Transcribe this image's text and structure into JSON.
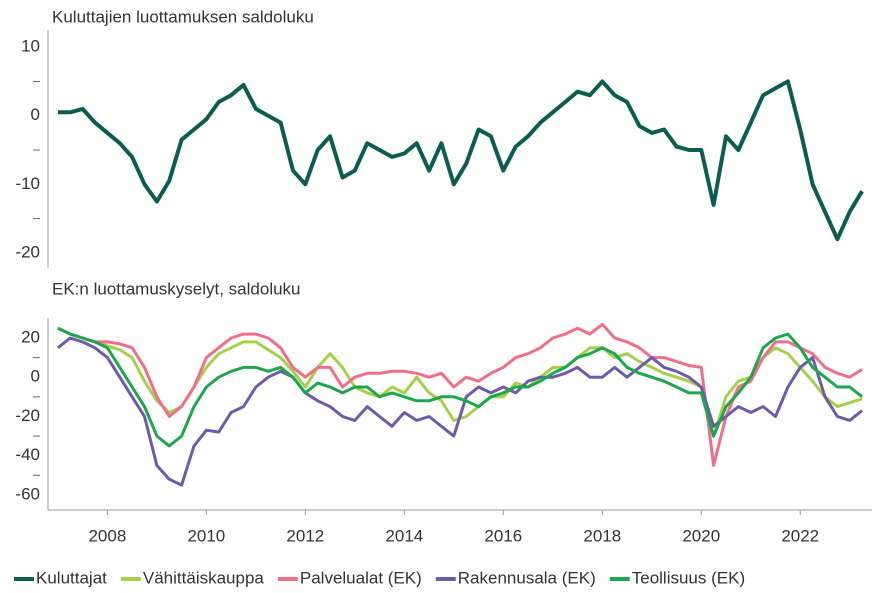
{
  "chart_data": [
    {
      "type": "line",
      "title": "Kuluttajien luottamuksen saldoluku",
      "x": [
        2007,
        2007.25,
        2007.5,
        2007.75,
        2008,
        2008.25,
        2008.5,
        2008.75,
        2009,
        2009.25,
        2009.5,
        2009.75,
        2010,
        2010.25,
        2010.5,
        2010.75,
        2011,
        2011.25,
        2011.5,
        2011.75,
        2012,
        2012.25,
        2012.5,
        2012.75,
        2013,
        2013.25,
        2013.5,
        2013.75,
        2014,
        2014.25,
        2014.5,
        2014.75,
        2015,
        2015.25,
        2015.5,
        2015.75,
        2016,
        2016.25,
        2016.5,
        2016.75,
        2017,
        2017.25,
        2017.5,
        2017.75,
        2018,
        2018.25,
        2018.5,
        2018.75,
        2019,
        2019.25,
        2019.5,
        2019.75,
        2020,
        2020.25,
        2020.5,
        2020.75,
        2021,
        2021.25,
        2021.5,
        2021.75,
        2022,
        2022.25,
        2022.5,
        2022.75,
        2023,
        2023.25
      ],
      "series": [
        {
          "name": "Kuluttajat",
          "color": "#0b5e4f",
          "values": [
            0.5,
            0.5,
            1,
            -1,
            -2.5,
            -4,
            -6,
            -10,
            -12.5,
            -9.5,
            -3.5,
            -2,
            -0.5,
            2,
            3,
            4.5,
            1,
            0,
            -1,
            -8,
            -10,
            -5,
            -3,
            -9,
            -8,
            -4,
            -5,
            -6,
            -5.5,
            -4,
            -8,
            -4,
            -10,
            -7,
            -2,
            -3,
            -8,
            -4.5,
            -3,
            -1,
            0.5,
            2,
            3.5,
            3,
            5,
            3,
            2,
            -1.5,
            -2.5,
            -2,
            -4.5,
            -5,
            -5,
            -13,
            -3,
            -5,
            -1,
            3,
            4,
            5,
            -2,
            -10,
            -14,
            -18,
            -14,
            -11
          ]
        }
      ],
      "xlim": [
        2006.8,
        2023.45
      ],
      "ylim": [
        -22.2,
        12.5
      ],
      "yticks": [
        -20,
        -10,
        0,
        10
      ],
      "yminor": [
        -15,
        -5,
        5
      ]
    },
    {
      "type": "line",
      "title": "EK:n luottamuskyselyt, saldoluku",
      "x": [
        2007,
        2007.25,
        2007.5,
        2007.75,
        2008,
        2008.25,
        2008.5,
        2008.75,
        2009,
        2009.25,
        2009.5,
        2009.75,
        2010,
        2010.25,
        2010.5,
        2010.75,
        2011,
        2011.25,
        2011.5,
        2011.75,
        2012,
        2012.25,
        2012.5,
        2012.75,
        2013,
        2013.25,
        2013.5,
        2013.75,
        2014,
        2014.25,
        2014.5,
        2014.75,
        2015,
        2015.25,
        2015.5,
        2015.75,
        2016,
        2016.25,
        2016.5,
        2016.75,
        2017,
        2017.25,
        2017.5,
        2017.75,
        2018,
        2018.25,
        2018.5,
        2018.75,
        2019,
        2019.25,
        2019.5,
        2019.75,
        2020,
        2020.25,
        2020.5,
        2020.75,
        2021,
        2021.25,
        2021.5,
        2021.75,
        2022,
        2022.25,
        2022.5,
        2022.75,
        2023,
        2023.25
      ],
      "series": [
        {
          "name": "Vähittäiskauppa",
          "color": "#a6d04a",
          "values": [
            25,
            22,
            20,
            18,
            16,
            14,
            10,
            -2,
            -12,
            -18,
            -15,
            -5,
            5,
            12,
            15,
            18,
            18,
            14,
            10,
            3,
            -5,
            5,
            12,
            5,
            -5,
            -8,
            -10,
            -5,
            -8,
            0,
            -8,
            -12,
            -22,
            -20,
            -15,
            -10,
            -10,
            -3,
            -5,
            0,
            5,
            5,
            10,
            15,
            15,
            10,
            12,
            8,
            5,
            2,
            0,
            -2,
            -5,
            -30,
            -10,
            -2,
            0,
            10,
            15,
            12,
            5,
            -2,
            -10,
            -15,
            -13,
            -11
          ]
        },
        {
          "name": "Palvelualat (EK)",
          "color": "#f06e8a",
          "values": [
            25,
            22,
            20,
            18,
            18,
            17,
            15,
            5,
            -10,
            -20,
            -15,
            -5,
            10,
            15,
            20,
            22,
            22,
            20,
            15,
            5,
            0,
            5,
            5,
            -5,
            0,
            2,
            2,
            3,
            3,
            2,
            0,
            2,
            -5,
            0,
            -2,
            2,
            5,
            10,
            12,
            15,
            20,
            22,
            25,
            22,
            27,
            20,
            18,
            15,
            10,
            10,
            8,
            6,
            5,
            -45,
            -20,
            -5,
            -2,
            10,
            18,
            18,
            15,
            12,
            5,
            2,
            0,
            4
          ]
        },
        {
          "name": "Rakennusala (EK)",
          "color": "#6e5aaa",
          "values": [
            15,
            20,
            18,
            15,
            10,
            0,
            -10,
            -20,
            -45,
            -52,
            -55,
            -35,
            -27,
            -28,
            -18,
            -15,
            -5,
            0,
            3,
            0,
            -8,
            -12,
            -15,
            -20,
            -22,
            -15,
            -20,
            -25,
            -18,
            -22,
            -20,
            -25,
            -30,
            -10,
            -5,
            -8,
            -5,
            -8,
            -2,
            0,
            0,
            2,
            5,
            0,
            0,
            5,
            0,
            5,
            10,
            5,
            3,
            0,
            -5,
            -25,
            -20,
            -15,
            -18,
            -15,
            -20,
            -5,
            5,
            10,
            -10,
            -20,
            -22,
            -17
          ]
        },
        {
          "name": "Teollisuus (EK)",
          "color": "#1aa84a",
          "values": [
            25,
            22,
            20,
            18,
            15,
            5,
            -5,
            -15,
            -30,
            -35,
            -30,
            -15,
            -5,
            0,
            3,
            5,
            5,
            3,
            5,
            0,
            -8,
            -3,
            -5,
            -8,
            -5,
            -5,
            -10,
            -8,
            -10,
            -12,
            -12,
            -10,
            -10,
            -12,
            -15,
            -10,
            -8,
            -5,
            -5,
            -2,
            2,
            5,
            10,
            12,
            15,
            12,
            5,
            2,
            0,
            -2,
            -5,
            -8,
            -8,
            -30,
            -15,
            -8,
            0,
            15,
            20,
            22,
            15,
            5,
            0,
            -5,
            -5,
            -10
          ]
        }
      ],
      "xlim": [
        2006.8,
        2023.45
      ],
      "ylim": [
        -67.7,
        30.2
      ],
      "yticks": [
        -60,
        -40,
        -20,
        0,
        20
      ],
      "yminor": [
        -50,
        -30,
        -10,
        10
      ],
      "xticks": [
        2008,
        2010,
        2012,
        2014,
        2016,
        2018,
        2020,
        2022
      ]
    }
  ]
}
